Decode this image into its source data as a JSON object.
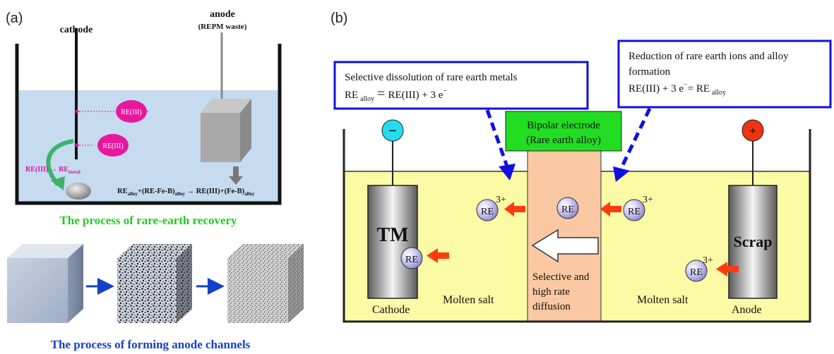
{
  "panel_a": {
    "label": "(a)",
    "cathode_label": "cathode",
    "anode_label": "anode",
    "anode_sub": "(REPM waste)",
    "ion1": "RE(III)",
    "ion2": "RE(III)",
    "cathode_reaction": "RE(III) → RE",
    "cathode_reaction_sub": "metal",
    "anode_reaction": {
      "p1": "RE",
      "s1": "alloy",
      "p2": "+(RE-Fe-B)",
      "s2": "alloy",
      "p3": " → RE(III)+(Fe-B)",
      "s3": "alloy"
    },
    "caption_recovery": "The process of rare-earth recovery",
    "caption_channels": "The process of forming anode channels"
  },
  "panel_b": {
    "label": "(b)",
    "callout_left": {
      "line1": "Selective dissolution of rare earth metals",
      "eq_re": "RE",
      "eq_sub": "alloy",
      "eq_eq": "=",
      "eq_rest": "RE(III) + 3 e",
      "eq_sup": "−"
    },
    "callout_right": {
      "line1": "Reduction of rare earth ions and alloy",
      "line2": "formation",
      "eq_start": "RE(III) + 3 e",
      "eq_sup": "−",
      "eq_mid": "= RE",
      "eq_sub": "alloy"
    },
    "bipolar_line1": "Bipolar electrode",
    "bipolar_line2": "(Rare earth alloy)",
    "minus_sign": "−",
    "plus_sign": "+",
    "cathode_tm": "TM",
    "scrap": "Scrap",
    "re": "RE",
    "charge": "3+",
    "cathode_label": "Cathode",
    "anode_label": "Anode",
    "molten_salt_left": "Molten salt",
    "molten_salt_right": "Molten salt",
    "diffusion_line1": "Selective and",
    "diffusion_line2": "high rate",
    "diffusion_line3": "diffusion"
  },
  "colors": {
    "electrolyte_a": "#c6daf0",
    "ion_magenta": "#e8189e",
    "caption_green": "#22cc22",
    "caption_blue": "#1540c8",
    "salt_yellow": "#fbfaa5",
    "bipolar_orange": "#fac9a3",
    "bipolar_green": "#22dd22",
    "callout_blue": "#1010e0",
    "arrow_red": "#ff3b10",
    "terminal_cyan": "#22ddf0",
    "terminal_red": "#ee3311",
    "re_ball": "#c9c6f2"
  }
}
